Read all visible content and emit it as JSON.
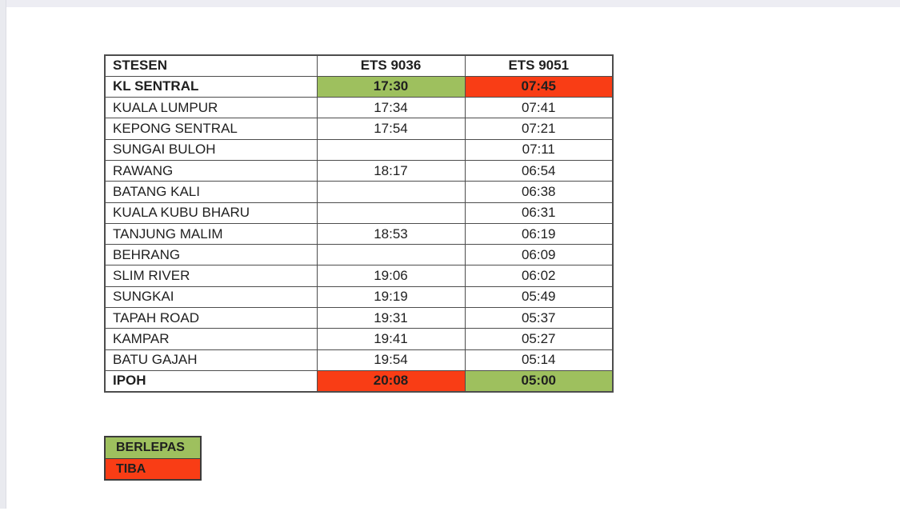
{
  "colors": {
    "berlepas_green": "#9ec05e",
    "tiba_red": "#f93d15",
    "table_border": "#4d4d4d"
  },
  "table": {
    "headers": [
      "STESEN",
      "ETS 9036",
      "ETS 9051"
    ],
    "rows": [
      {
        "station": "KL SENTRAL",
        "bold": true,
        "times": [
          {
            "value": "17:30",
            "highlight": "green"
          },
          {
            "value": "07:45",
            "highlight": "red"
          }
        ]
      },
      {
        "station": "KUALA LUMPUR",
        "bold": false,
        "times": [
          {
            "value": "17:34",
            "highlight": ""
          },
          {
            "value": "07:41",
            "highlight": ""
          }
        ]
      },
      {
        "station": "KEPONG SENTRAL",
        "bold": false,
        "times": [
          {
            "value": "17:54",
            "highlight": ""
          },
          {
            "value": "07:21",
            "highlight": ""
          }
        ]
      },
      {
        "station": "SUNGAI BULOH",
        "bold": false,
        "times": [
          {
            "value": "",
            "highlight": ""
          },
          {
            "value": "07:11",
            "highlight": ""
          }
        ]
      },
      {
        "station": "RAWANG",
        "bold": false,
        "times": [
          {
            "value": "18:17",
            "highlight": ""
          },
          {
            "value": "06:54",
            "highlight": ""
          }
        ]
      },
      {
        "station": "BATANG KALI",
        "bold": false,
        "times": [
          {
            "value": "",
            "highlight": ""
          },
          {
            "value": "06:38",
            "highlight": ""
          }
        ]
      },
      {
        "station": "KUALA KUBU BHARU",
        "bold": false,
        "times": [
          {
            "value": "",
            "highlight": ""
          },
          {
            "value": "06:31",
            "highlight": ""
          }
        ]
      },
      {
        "station": "TANJUNG MALIM",
        "bold": false,
        "times": [
          {
            "value": "18:53",
            "highlight": ""
          },
          {
            "value": "06:19",
            "highlight": ""
          }
        ]
      },
      {
        "station": "BEHRANG",
        "bold": false,
        "times": [
          {
            "value": "",
            "highlight": ""
          },
          {
            "value": "06:09",
            "highlight": ""
          }
        ]
      },
      {
        "station": "SLIM RIVER",
        "bold": false,
        "times": [
          {
            "value": "19:06",
            "highlight": ""
          },
          {
            "value": "06:02",
            "highlight": ""
          }
        ]
      },
      {
        "station": "SUNGKAI",
        "bold": false,
        "times": [
          {
            "value": "19:19",
            "highlight": ""
          },
          {
            "value": "05:49",
            "highlight": ""
          }
        ]
      },
      {
        "station": "TAPAH ROAD",
        "bold": false,
        "times": [
          {
            "value": "19:31",
            "highlight": ""
          },
          {
            "value": "05:37",
            "highlight": ""
          }
        ]
      },
      {
        "station": "KAMPAR",
        "bold": false,
        "times": [
          {
            "value": "19:41",
            "highlight": ""
          },
          {
            "value": "05:27",
            "highlight": ""
          }
        ]
      },
      {
        "station": "BATU GAJAH",
        "bold": false,
        "times": [
          {
            "value": "19:54",
            "highlight": ""
          },
          {
            "value": "05:14",
            "highlight": ""
          }
        ]
      },
      {
        "station": "IPOH",
        "bold": true,
        "times": [
          {
            "value": "20:08",
            "highlight": "red"
          },
          {
            "value": "05:00",
            "highlight": "green"
          }
        ]
      }
    ]
  },
  "legend": {
    "items": [
      {
        "label": "BERLEPAS",
        "color": "green"
      },
      {
        "label": "TIBA",
        "color": "red"
      }
    ]
  }
}
